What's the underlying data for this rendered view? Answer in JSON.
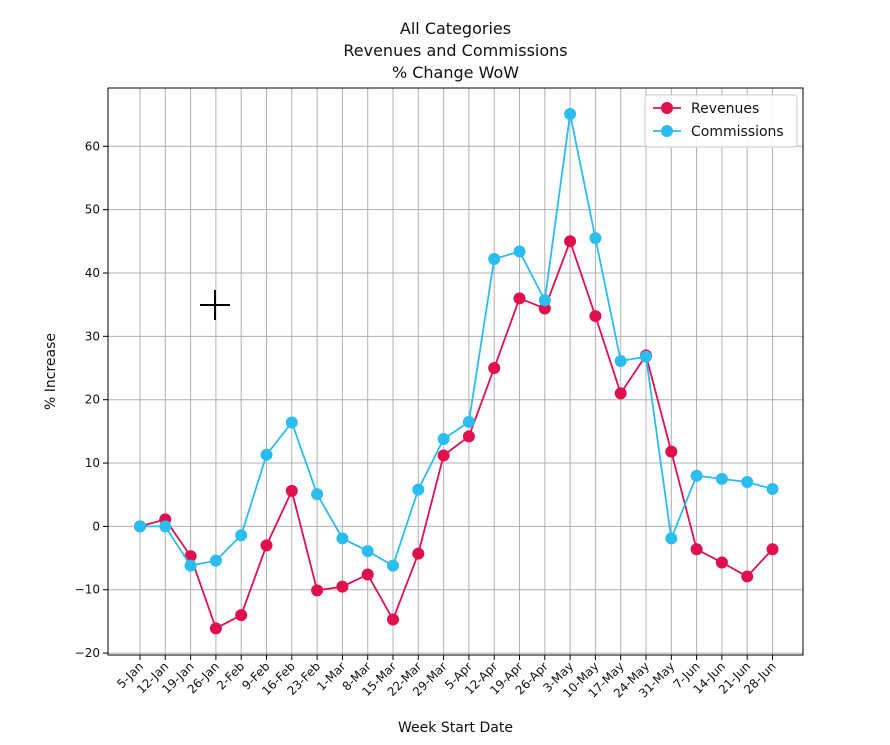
{
  "chart_data": {
    "type": "line",
    "title": [
      "All Categories",
      "Revenues and Commissions",
      "% Change WoW"
    ],
    "xlabel": "Week Start Date",
    "ylabel": "% Increase",
    "ylim": [
      -20.3,
      69.2
    ],
    "yticks": [
      -20,
      -10,
      0,
      10,
      20,
      30,
      40,
      50,
      60
    ],
    "ytick_labels": [
      "−20",
      "−10",
      "0",
      "10",
      "20",
      "30",
      "40",
      "50",
      "60"
    ],
    "categories": [
      "5-Jan",
      "12-Jan",
      "19-Jan",
      "26-Jan",
      "2-Feb",
      "9-Feb",
      "16-Feb",
      "23-Feb",
      "1-Mar",
      "8-Mar",
      "15-Mar",
      "22-Mar",
      "29-Mar",
      "5-Apr",
      "12-Apr",
      "19-Apr",
      "26-Apr",
      "3-May",
      "10-May",
      "17-May",
      "24-May",
      "31-May",
      "7-Jun",
      "14-Jun",
      "21-Jun",
      "28-Jun"
    ],
    "grid": true,
    "legend_position": "top-right",
    "series": [
      {
        "name": "Revenues",
        "color": "#e0104f",
        "values": [
          0.0,
          1.1,
          -4.7,
          -16.1,
          -14.0,
          -3.0,
          5.6,
          -10.1,
          -9.5,
          -7.6,
          -14.7,
          -4.3,
          11.2,
          14.2,
          25.0,
          36.0,
          34.4,
          45.0,
          33.2,
          21.0,
          27.0,
          11.8,
          -3.6,
          -5.7,
          -7.9,
          -3.6
        ]
      },
      {
        "name": "Commissions",
        "color": "#2bbcf0",
        "values": [
          0.0,
          0.0,
          -6.2,
          -5.4,
          -1.4,
          11.3,
          16.4,
          5.1,
          -1.9,
          -3.9,
          -6.2,
          5.8,
          13.8,
          16.5,
          42.2,
          43.4,
          35.7,
          65.1,
          45.5,
          26.1,
          26.8,
          -1.9,
          8.0,
          7.5,
          7.0,
          5.9
        ]
      }
    ]
  }
}
